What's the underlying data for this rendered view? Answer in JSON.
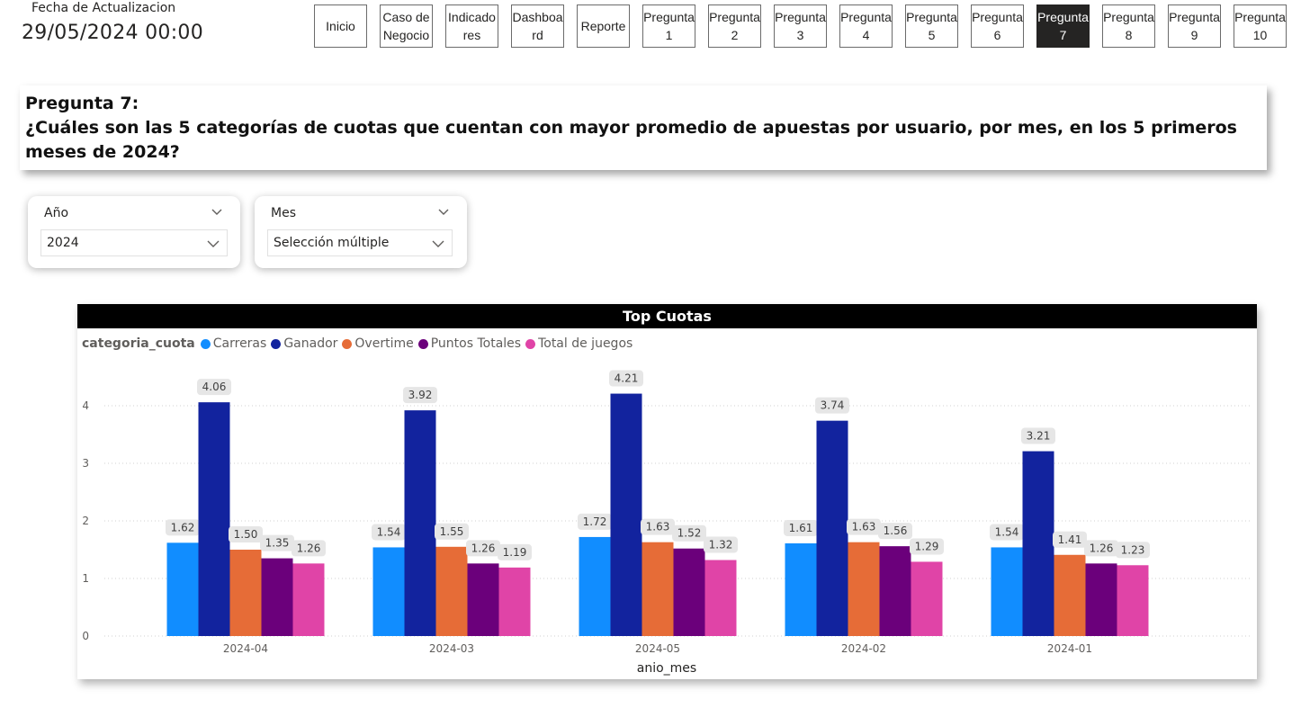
{
  "header": {
    "update_label": "Fecha de Actualizacion",
    "update_value": "29/05/2024 00:00"
  },
  "nav": {
    "buttons": [
      {
        "label": "Inicio",
        "active": false
      },
      {
        "label": "Caso de\nNegocio",
        "active": false
      },
      {
        "label": "Indicado\nres",
        "active": false
      },
      {
        "label": "Dashboa\nrd",
        "active": false
      },
      {
        "label": "Reporte",
        "active": false
      },
      {
        "label": "Pregunta\n1",
        "active": false
      },
      {
        "label": "Pregunta\n2",
        "active": false
      },
      {
        "label": "Pregunta\n3",
        "active": false
      },
      {
        "label": "Pregunta\n4",
        "active": false
      },
      {
        "label": "Pregunta\n5",
        "active": false
      },
      {
        "label": "Pregunta\n6",
        "active": false
      },
      {
        "label": "Pregunta\n7",
        "active": true
      },
      {
        "label": "Pregunta\n8",
        "active": false
      },
      {
        "label": "Pregunta\n9",
        "active": false
      },
      {
        "label": "Pregunta\n10",
        "active": false
      }
    ]
  },
  "question": {
    "title": "Pregunta 7:",
    "text": "¿Cuáles son las 5 categorías de cuotas que cuentan con mayor promedio de apuestas por usuario, por mes, en los 5 primeros meses de 2024?"
  },
  "filters": {
    "year": {
      "header": "Año",
      "value": "2024"
    },
    "month": {
      "header": "Mes",
      "value": "Selección múltiple"
    }
  },
  "chart_data": {
    "type": "bar",
    "title": "Top Cuotas",
    "legend_title": "categoria_cuota",
    "legend_position": "top-left",
    "xlabel": "anio_mes",
    "ylabel": "",
    "categories": [
      "2024-04",
      "2024-03",
      "2024-05",
      "2024-02",
      "2024-01"
    ],
    "series": [
      {
        "name": "Carreras",
        "color": "#118DFF",
        "values": [
          1.62,
          1.54,
          1.72,
          1.61,
          1.54
        ]
      },
      {
        "name": "Ganador",
        "color": "#12239E",
        "values": [
          4.06,
          3.92,
          4.21,
          3.74,
          3.21
        ]
      },
      {
        "name": "Overtime",
        "color": "#E66C37",
        "values": [
          1.5,
          1.55,
          1.63,
          1.63,
          1.41
        ]
      },
      {
        "name": "Puntos Totales",
        "color": "#6B007B",
        "values": [
          1.35,
          1.26,
          1.52,
          1.56,
          1.26
        ]
      },
      {
        "name": "Total de juegos",
        "color": "#E044A7",
        "values": [
          1.26,
          1.19,
          1.32,
          1.29,
          1.23
        ]
      }
    ],
    "yticks": [
      0,
      1,
      2,
      3,
      4
    ],
    "ylim": [
      0,
      4.4
    ],
    "grid": true
  }
}
